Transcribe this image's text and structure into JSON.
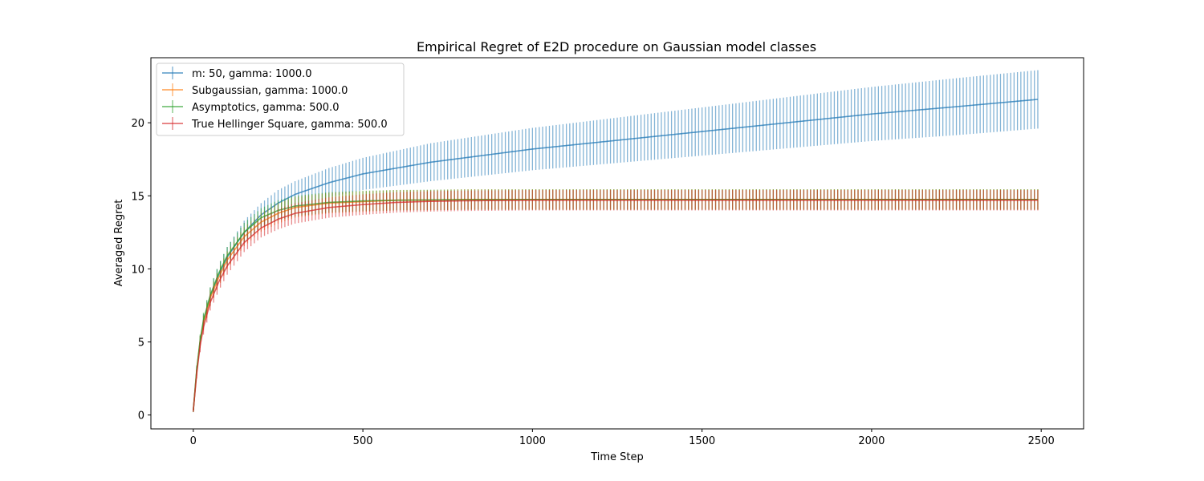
{
  "chart_data": {
    "type": "line",
    "title": "Empirical Regret of E2D procedure on Gaussian model classes",
    "xlabel": "Time Step",
    "ylabel": "Averaged Regret",
    "xlim": [
      -125,
      2625
    ],
    "ylim": [
      -0.95,
      24.45
    ],
    "xticks": [
      0,
      500,
      1000,
      1500,
      2000,
      2500
    ],
    "yticks": [
      0,
      5,
      10,
      15,
      20
    ],
    "grid": false,
    "legend_position": "top-left",
    "error_bars": true,
    "series": [
      {
        "name": "m: 50, gamma: 1000.0",
        "color": "#1f77b4",
        "x": [
          0,
          10,
          20,
          30,
          50,
          75,
          100,
          150,
          200,
          250,
          300,
          400,
          500,
          600,
          700,
          800,
          1000,
          1250,
          1500,
          1750,
          2000,
          2250,
          2490
        ],
        "y": [
          0.3,
          3.0,
          5.0,
          6.4,
          8.1,
          9.6,
          10.8,
          12.5,
          13.7,
          14.5,
          15.1,
          15.9,
          16.5,
          16.9,
          17.3,
          17.6,
          18.2,
          18.8,
          19.4,
          20.0,
          20.6,
          21.1,
          21.6
        ],
        "err": [
          0.1,
          0.3,
          0.4,
          0.5,
          0.6,
          0.7,
          0.7,
          0.8,
          0.8,
          0.9,
          0.9,
          1.0,
          1.1,
          1.2,
          1.3,
          1.35,
          1.45,
          1.55,
          1.65,
          1.75,
          1.85,
          1.95,
          2.0
        ]
      },
      {
        "name": "Subgaussian, gamma: 1000.0",
        "color": "#ff7f0e",
        "x": [
          0,
          10,
          20,
          30,
          50,
          75,
          100,
          150,
          200,
          250,
          300,
          400,
          500,
          600,
          700,
          800,
          1000,
          1250,
          1500,
          1750,
          2000,
          2250,
          2490
        ],
        "y": [
          0.3,
          3.0,
          5.0,
          6.3,
          8.0,
          9.4,
          10.6,
          12.2,
          13.2,
          13.8,
          14.2,
          14.5,
          14.6,
          14.7,
          14.7,
          14.75,
          14.75,
          14.75,
          14.75,
          14.75,
          14.75,
          14.75,
          14.75
        ],
        "err": [
          0.1,
          0.3,
          0.4,
          0.5,
          0.55,
          0.6,
          0.6,
          0.65,
          0.65,
          0.7,
          0.7,
          0.7,
          0.7,
          0.7,
          0.7,
          0.7,
          0.7,
          0.7,
          0.7,
          0.7,
          0.7,
          0.7,
          0.7
        ]
      },
      {
        "name": "Asymptotics, gamma: 500.0",
        "color": "#2ca02c",
        "x": [
          0,
          10,
          20,
          30,
          50,
          75,
          100,
          150,
          200,
          250,
          300,
          400,
          500,
          600,
          700,
          800,
          1000,
          1250,
          1500,
          1750,
          2000,
          2250,
          2490
        ],
        "y": [
          0.3,
          3.1,
          5.1,
          6.5,
          8.2,
          9.7,
          10.9,
          12.5,
          13.5,
          14.0,
          14.3,
          14.55,
          14.65,
          14.7,
          14.72,
          14.74,
          14.75,
          14.75,
          14.75,
          14.75,
          14.75,
          14.75,
          14.75
        ],
        "err": [
          0.1,
          0.3,
          0.4,
          0.5,
          0.55,
          0.6,
          0.6,
          0.65,
          0.65,
          0.7,
          0.7,
          0.7,
          0.7,
          0.7,
          0.7,
          0.7,
          0.7,
          0.7,
          0.7,
          0.7,
          0.7,
          0.7,
          0.7
        ]
      },
      {
        "name": "True Hellinger Square, gamma: 500.0",
        "color": "#d62728",
        "x": [
          0,
          10,
          20,
          30,
          50,
          75,
          100,
          150,
          200,
          250,
          300,
          400,
          500,
          600,
          700,
          800,
          1000,
          1250,
          1500,
          1750,
          2000,
          2250,
          2490
        ],
        "y": [
          0.3,
          2.8,
          4.7,
          6.0,
          7.7,
          9.1,
          10.2,
          11.8,
          12.8,
          13.4,
          13.8,
          14.2,
          14.4,
          14.55,
          14.62,
          14.66,
          14.7,
          14.7,
          14.7,
          14.7,
          14.7,
          14.7,
          14.7
        ],
        "err": [
          0.1,
          0.3,
          0.4,
          0.5,
          0.55,
          0.6,
          0.6,
          0.65,
          0.65,
          0.7,
          0.7,
          0.7,
          0.7,
          0.7,
          0.7,
          0.7,
          0.7,
          0.7,
          0.7,
          0.7,
          0.7,
          0.7,
          0.7
        ]
      }
    ]
  }
}
